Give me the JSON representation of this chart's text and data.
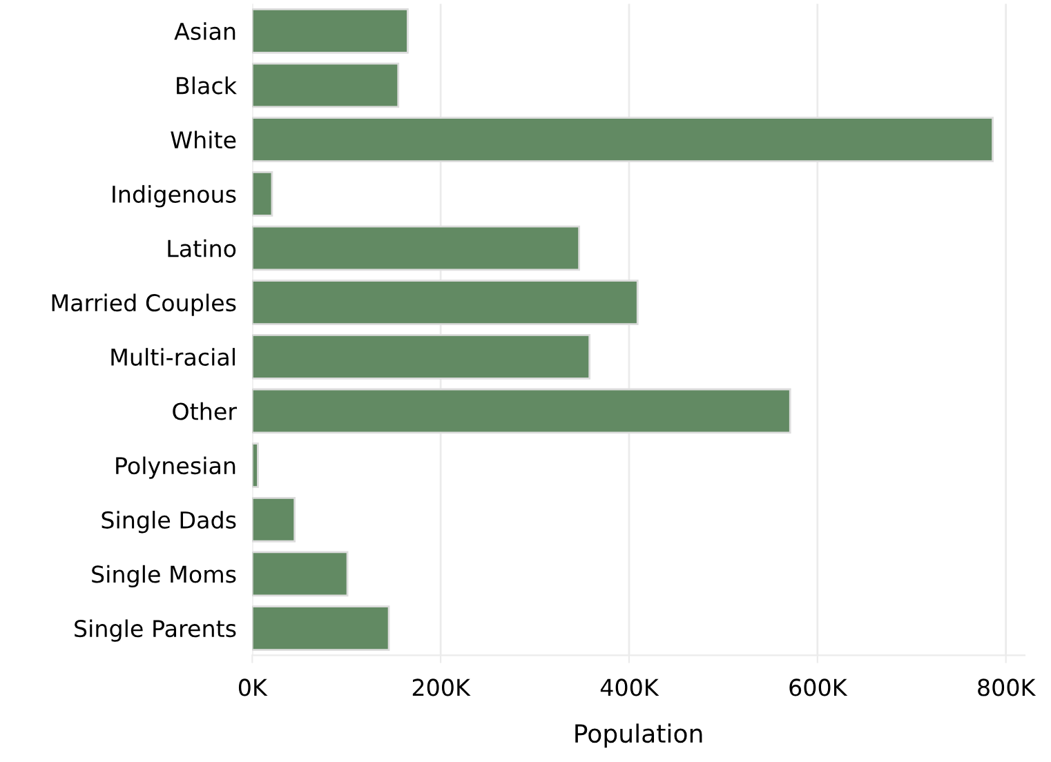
{
  "chart_data": {
    "type": "bar",
    "orientation": "horizontal",
    "xlabel": "Population",
    "categories": [
      "Asian",
      "Black",
      "White",
      "Indigenous",
      "Latino",
      "Married Couples",
      "Multi-racial",
      "Other",
      "Polynesian",
      "Single Dads",
      "Single Moms",
      "Single Parents"
    ],
    "values": [
      165000,
      155000,
      786000,
      21000,
      347000,
      409000,
      358000,
      571000,
      6000,
      45000,
      101000,
      145000
    ],
    "color": "#628a63",
    "xlim": [
      0,
      820000
    ],
    "xticks": [
      {
        "value": 0,
        "label": "0K"
      },
      {
        "value": 200000,
        "label": "200K"
      },
      {
        "value": 400000,
        "label": "400K"
      },
      {
        "value": 600000,
        "label": "600K"
      },
      {
        "value": 800000,
        "label": "800K"
      }
    ],
    "grid": "x",
    "legend": false
  }
}
